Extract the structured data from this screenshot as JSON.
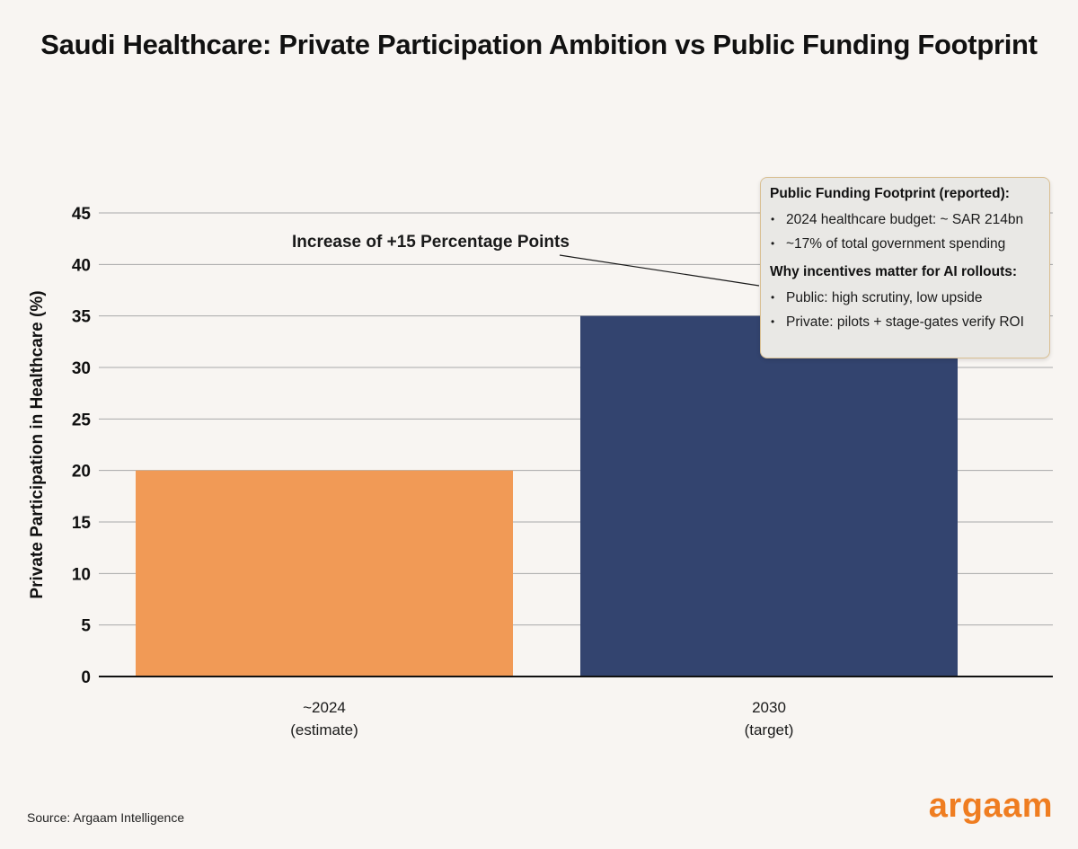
{
  "chart_data": {
    "type": "bar",
    "title": "Saudi Healthcare: Private Participation Ambition vs Public Funding Footprint",
    "ylabel": "Private Participation in Healthcare (%)",
    "xlabel": "",
    "ylim": [
      0,
      45
    ],
    "yticks": [
      0,
      5,
      10,
      15,
      20,
      25,
      30,
      35,
      40,
      45
    ],
    "grid": true,
    "categories": [
      {
        "line1": "~2024",
        "line2": "(estimate)"
      },
      {
        "line1": "2030",
        "line2": "(target)"
      }
    ],
    "values": [
      20,
      35
    ],
    "colors": [
      "#f19a56",
      "#33446f"
    ],
    "annotation": "Increase of +15 Percentage Points",
    "infobox": {
      "heading1": "Public Funding Footprint (reported):",
      "items1": [
        "2024 healthcare budget: ~ SAR 214bn",
        "~17% of total government spending"
      ],
      "heading2": "Why incentives matter for AI rollouts:",
      "items2": [
        "Public: high scrutiny, low upside",
        "Private: pilots + stage-gates verify ROI"
      ]
    }
  },
  "footer": {
    "source": "Source: Argaam Intelligence",
    "logo": "argaam"
  }
}
